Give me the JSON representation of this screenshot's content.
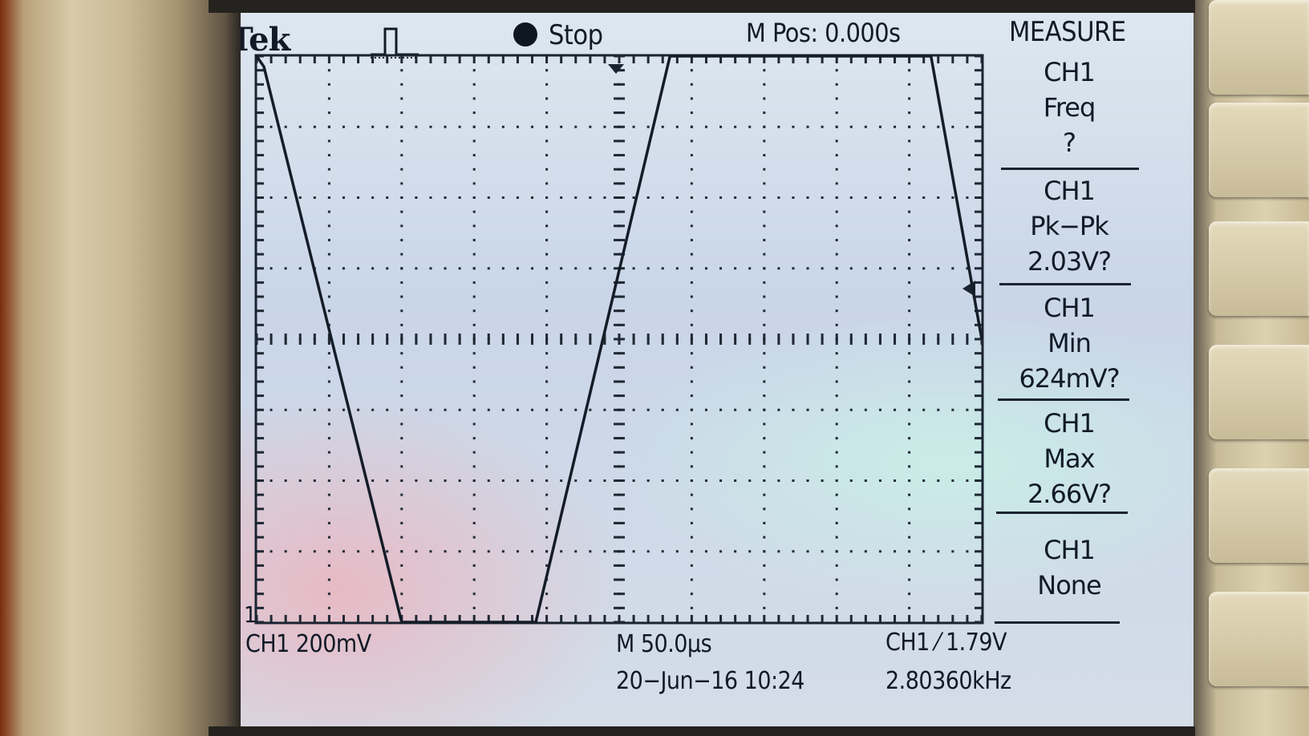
{
  "header": {
    "brand": "Tek",
    "trigger_icon": "pulse-trigger-icon",
    "run_state": "Stop",
    "run_indicator_color": "#0e1620",
    "m_pos": "M Pos: 0.000s",
    "menu_title": "MEASURE"
  },
  "measurements": [
    {
      "source": "CH1",
      "type": "Freq",
      "value": "?"
    },
    {
      "source": "CH1",
      "type": "Pk−Pk",
      "value": "2.03V?"
    },
    {
      "source": "CH1",
      "type": "Min",
      "value": "624mV?"
    },
    {
      "source": "CH1",
      "type": "Max",
      "value": "2.66V?"
    },
    {
      "source": "CH1",
      "type": "None",
      "value": ""
    }
  ],
  "footer": {
    "channel_marker": "1",
    "ch_scale": "CH1  200mV",
    "timebase": "M 50.0µs",
    "trigger": "CH1 ⁄ 1.79V",
    "datetime": "20−Jun−16 10:24",
    "frequency": "2.80360kHz"
  },
  "waveform": {
    "type": "line",
    "divisions": {
      "x": 10,
      "y": 8
    },
    "x_per_div": "50.0µs",
    "y_per_div": "200mV",
    "trace_color": "#141c28",
    "points_div": [
      [
        0,
        8.0
      ],
      [
        0.1,
        7.85
      ],
      [
        2.0,
        0.0
      ],
      [
        3.85,
        0.0
      ],
      [
        5.7,
        8.0
      ],
      [
        9.3,
        8.0
      ],
      [
        10.0,
        4.0
      ]
    ]
  }
}
